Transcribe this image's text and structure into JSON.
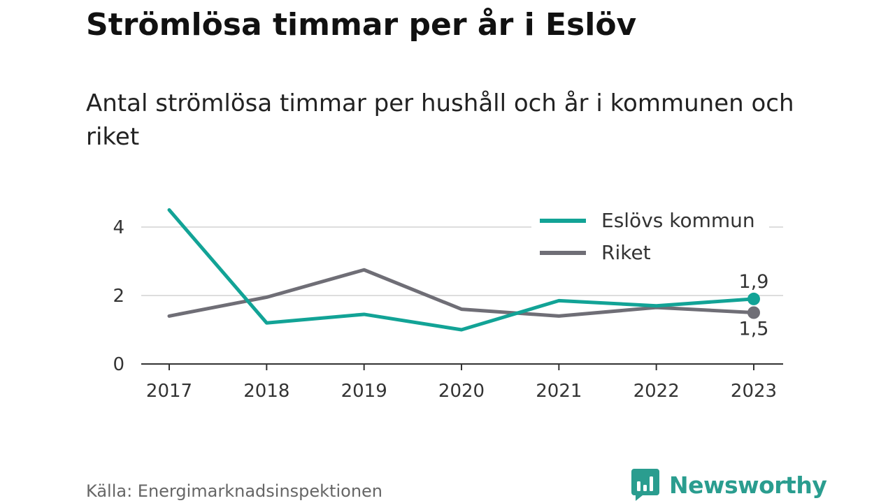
{
  "title": "Strömlösa timmar per år i Eslöv",
  "subtitle": "Antal strömlösa timmar per hushåll och år i kommunen och riket",
  "source": "Källa: Energimarknadsinspektionen",
  "brand": {
    "name": "Newsworthy",
    "icon": "newsworthy-logo-icon",
    "color": "#2a9d8f"
  },
  "chart_data": {
    "type": "line",
    "title": "Strömlösa timmar per år i Eslöv",
    "subtitle": "Antal strömlösa timmar per hushåll och år i kommunen och riket",
    "x": [
      "2017",
      "2018",
      "2019",
      "2020",
      "2021",
      "2022",
      "2023"
    ],
    "y_ticks": [
      "0",
      "2",
      "4"
    ],
    "y_tick_values": [
      0,
      2,
      4
    ],
    "ylim": [
      0,
      4.5
    ],
    "grid": true,
    "legend_position": "top-right",
    "series": [
      {
        "name": "Eslövs kommun",
        "color": "#12a396",
        "values": [
          4.5,
          1.2,
          1.45,
          1.0,
          1.85,
          1.7,
          1.9
        ],
        "end_label": "1,9"
      },
      {
        "name": "Riket",
        "color": "#6f6e76",
        "values": [
          1.4,
          1.95,
          2.75,
          1.6,
          1.4,
          1.65,
          1.5
        ],
        "end_label": "1,5"
      }
    ]
  }
}
